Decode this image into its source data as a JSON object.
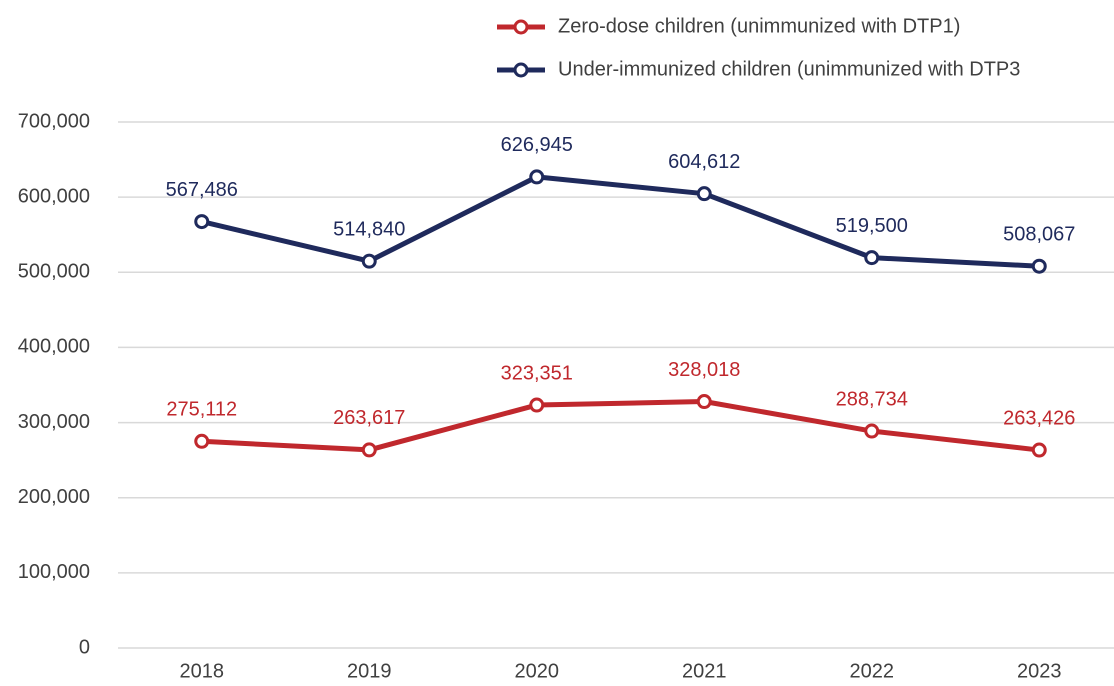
{
  "chart_data": {
    "type": "line",
    "categories": [
      "2018",
      "2019",
      "2020",
      "2021",
      "2022",
      "2023"
    ],
    "series": [
      {
        "name": "Zero-dose children (unimmunized with DTP1)",
        "color": "#c0282d",
        "values": [
          275112,
          263617,
          323351,
          328018,
          288734,
          263426
        ],
        "value_labels": [
          "275,112",
          "263,617",
          "323,351",
          "328,018",
          "288,734",
          "263,426"
        ]
      },
      {
        "name": "Under-immunized children (unimmunized with DTP3",
        "color": "#1f2a5c",
        "values": [
          567486,
          514840,
          626945,
          604612,
          519500,
          508067
        ],
        "value_labels": [
          "567,486",
          "514,840",
          "626,945",
          "604,612",
          "519,500",
          "508,067"
        ]
      }
    ],
    "ylim": [
      0,
      700000
    ],
    "yticks": [
      0,
      {
        "value": 100000,
        "label": "100,000"
      },
      {
        "value": 200000,
        "label": "200,000"
      },
      {
        "value": 300000,
        "label": "300,000"
      },
      {
        "value": 400000,
        "label": "400,000"
      },
      {
        "value": 500000,
        "label": "500,000"
      },
      {
        "value": 600000,
        "label": "600,000"
      },
      {
        "value": 700000,
        "label": "700,000"
      }
    ],
    "grid": true,
    "legend": "top-right"
  }
}
